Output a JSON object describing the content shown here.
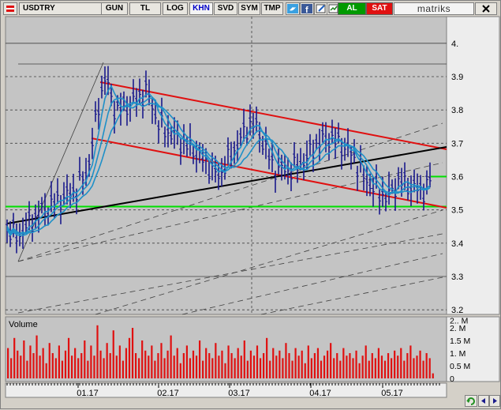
{
  "toolbar": {
    "symbol": "USDTRY",
    "buttons": [
      "GUN",
      "TL",
      "LOG",
      "KHN",
      "SVD",
      "SYM",
      "TMP"
    ],
    "active_button": "KHN",
    "buy_label": "AL",
    "sell_label": "SAT",
    "brand": "matriks"
  },
  "icons": {
    "flag": "flag-icon",
    "twitter": "twitter-icon",
    "facebook": "facebook-icon",
    "edit": "edit-icon",
    "new_chart": "new-chart-icon",
    "refresh": "refresh-icon",
    "close": "close-icon",
    "scroll_left": "arrow-left-icon",
    "scroll_right": "arrow-right-icon"
  },
  "colors": {
    "price_bar": "#1a1a8c",
    "moving_average": "#1e90c8",
    "channel": "#e01010",
    "trendline": "#000000",
    "support": "#00e000",
    "volume_bar": "#e01010",
    "buy": "#009a00",
    "sell": "#e01010"
  },
  "chart_data": [
    {
      "type": "bar",
      "name": "price",
      "y_ticks": [
        "4.",
        "3.9",
        "3.8",
        "3.7",
        "3.6",
        "3.5",
        "3.4",
        "3.3",
        "3.2"
      ],
      "ylim": [
        3.19,
        4.12
      ],
      "x_ticks": [
        "01.17",
        "02.17",
        "03.17",
        "04.17",
        "05.17"
      ],
      "last_value": 3.6,
      "support_level": 3.51,
      "grid": "dotted",
      "indicators": [
        "moving averages (3)",
        "price channel",
        "trend line",
        "speed fan lines"
      ]
    },
    {
      "type": "bar",
      "title": "Volume",
      "y_ticks": [
        "2.. M",
        "2. M",
        "1.5 M",
        "1. M",
        "0.5 M",
        "0"
      ],
      "ylim": [
        0,
        2300000
      ],
      "values_millions": [
        1.2,
        0.8,
        1.6,
        1.1,
        0.9,
        1.5,
        0.7,
        1.3,
        1.0,
        1.7,
        0.9,
        1.2,
        0.6,
        1.4,
        1.0,
        0.8,
        1.3,
        0.7,
        1.1,
        1.6,
        0.9,
        1.2,
        0.8,
        1.0,
        1.5,
        0.7,
        1.3,
        0.9,
        2.1,
        1.1,
        0.8,
        1.4,
        1.0,
        1.9,
        0.9,
        1.3,
        0.7,
        1.2,
        1.6,
        2.0,
        1.0,
        0.8,
        1.5,
        1.1,
        0.9,
        1.3,
        0.7,
        1.0,
        1.4,
        0.8,
        1.1,
        1.7,
        0.9,
        1.2,
        0.6,
        1.0,
        1.3,
        0.8,
        1.1,
        0.9,
        1.5,
        0.7,
        1.2,
        1.0,
        0.8,
        1.4,
        0.9,
        1.1,
        0.6,
        1.3,
        1.0,
        0.8,
        1.2,
        0.9,
        1.5,
        0.7,
        1.1,
        0.9,
        1.3,
        0.8,
        1.0,
        1.6,
        0.7,
        1.2,
        0.9,
        1.1,
        0.8,
        1.4,
        1.0,
        0.7,
        1.2,
        0.9,
        1.1,
        0.6,
        1.3,
        0.8,
        1.0,
        1.2,
        0.7,
        0.9,
        1.1,
        1.4,
        0.8,
        1.0,
        0.7,
        1.2,
        0.9,
        1.0,
        0.8,
        1.1,
        0.6,
        0.9,
        1.3,
        0.7,
        1.0,
        0.8,
        1.2,
        0.9,
        0.7,
        1.0,
        0.8,
        1.1,
        0.9,
        1.2,
        0.7,
        1.0,
        1.3,
        0.8,
        0.9,
        1.1,
        0.7,
        1.0,
        0.8,
        0.2
      ]
    }
  ]
}
